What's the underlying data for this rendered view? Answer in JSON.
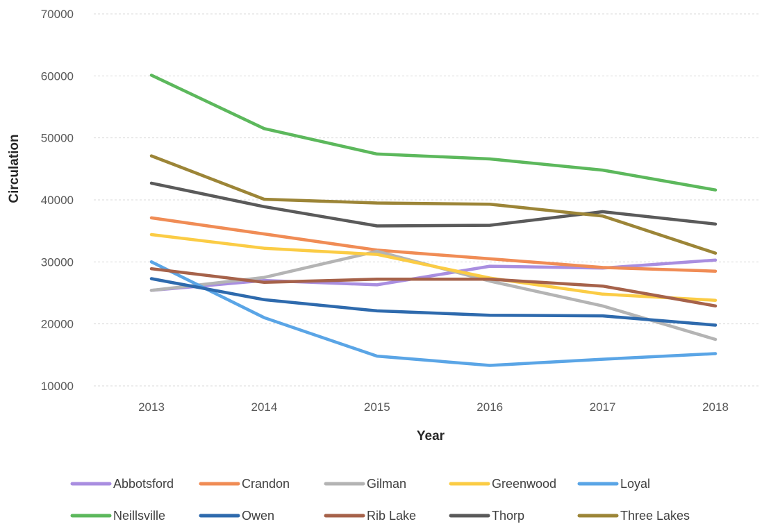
{
  "chart_data": {
    "type": "line",
    "title": "",
    "xlabel": "Year",
    "ylabel": "Circulation",
    "categories": [
      "2013",
      "2014",
      "2015",
      "2016",
      "2017",
      "2018"
    ],
    "ylim": [
      10000,
      70000
    ],
    "yticks": [
      10000,
      20000,
      30000,
      40000,
      50000,
      60000,
      70000
    ],
    "grid": true,
    "legend_position": "bottom",
    "series": [
      {
        "name": "Abbotsford",
        "color": "#a98ee0",
        "values": [
          25400,
          27000,
          26300,
          29300,
          29000,
          30300
        ]
      },
      {
        "name": "Crandon",
        "color": "#f08c55",
        "values": [
          37100,
          34500,
          31900,
          30500,
          29100,
          28500
        ]
      },
      {
        "name": "Gilman",
        "color": "#b4b4b4",
        "values": [
          25400,
          27500,
          31700,
          26900,
          22900,
          17500
        ]
      },
      {
        "name": "Greenwood",
        "color": "#fbcc45",
        "values": [
          34400,
          32200,
          31200,
          27400,
          24800,
          23800
        ]
      },
      {
        "name": "Loyal",
        "color": "#5aa5e6",
        "values": [
          30000,
          21000,
          14800,
          13300,
          14300,
          15200
        ]
      },
      {
        "name": "Neillsville",
        "color": "#5cb85c",
        "values": [
          60100,
          51500,
          47400,
          46600,
          44800,
          41600
        ]
      },
      {
        "name": "Owen",
        "color": "#2e6aad",
        "values": [
          27300,
          23900,
          22100,
          21400,
          21300,
          19800
        ]
      },
      {
        "name": "Rib Lake",
        "color": "#a6624a",
        "values": [
          28900,
          26700,
          27200,
          27200,
          26100,
          22900
        ]
      },
      {
        "name": "Thorp",
        "color": "#5a5a5a",
        "values": [
          42700,
          38900,
          35800,
          35900,
          38100,
          36100
        ]
      },
      {
        "name": "Three Lakes",
        "color": "#9c8537",
        "values": [
          47100,
          40100,
          39500,
          39300,
          37400,
          31400
        ]
      }
    ]
  }
}
